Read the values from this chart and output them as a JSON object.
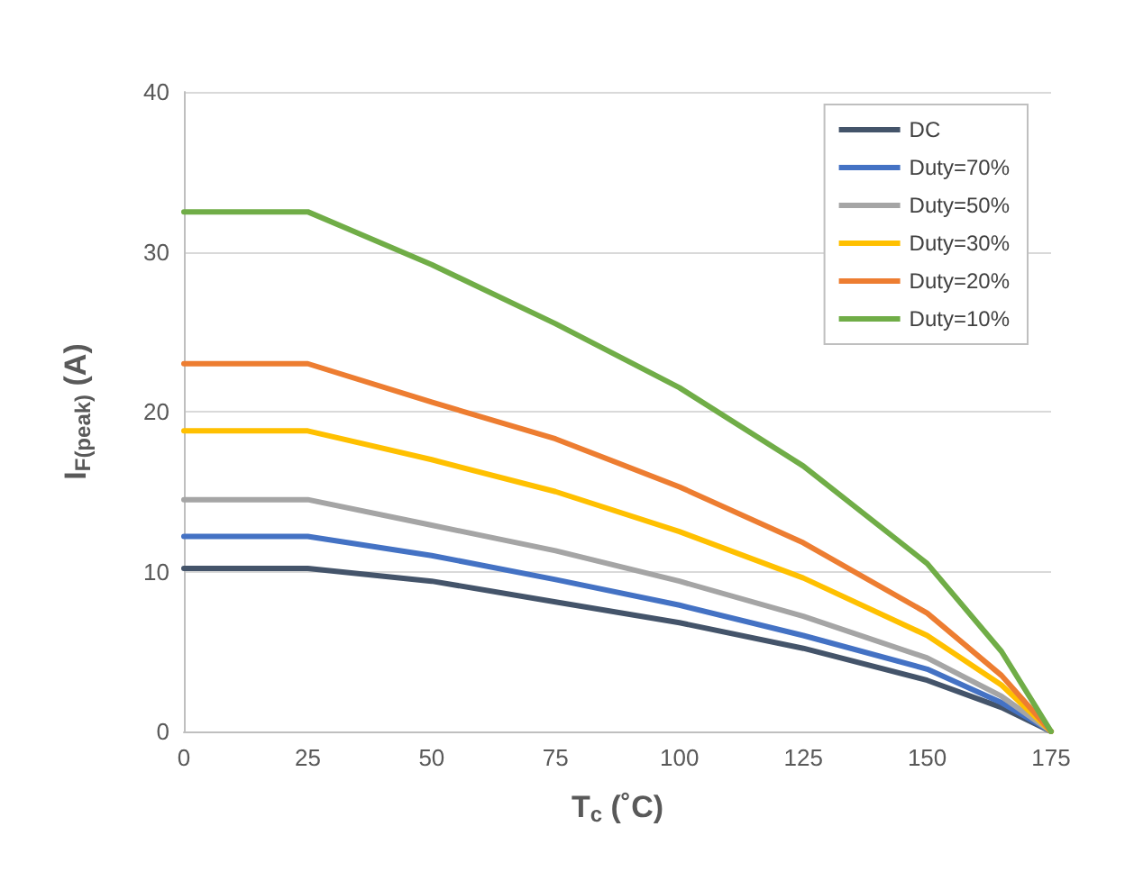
{
  "chart_data": {
    "type": "line",
    "xlabel": "T$_{c}$ (˚C)",
    "ylabel": "I$_{F(peak)}$ (A)",
    "x": [
      0,
      25,
      50,
      75,
      100,
      125,
      150,
      165,
      175
    ],
    "xlim": [
      0,
      175
    ],
    "xticks": [
      0,
      25,
      50,
      75,
      100,
      125,
      150,
      175
    ],
    "ylim": [
      0,
      40
    ],
    "yticks": [
      0,
      10,
      20,
      30,
      40
    ],
    "grid": "y",
    "legend": "top right",
    "marker": "none",
    "line_style": "solid",
    "series": [
      {
        "name": "DC",
        "color": "#44546a",
        "values": [
          10.2,
          10.2,
          9.4,
          8.1,
          6.8,
          5.2,
          3.2,
          1.5,
          0
        ]
      },
      {
        "name": "Duty=70%",
        "color": "#4472c4",
        "values": [
          12.2,
          12.2,
          11.0,
          9.5,
          7.9,
          6.0,
          3.9,
          1.8,
          0
        ]
      },
      {
        "name": "Duty=50%",
        "color": "#a5a5a5",
        "values": [
          14.5,
          14.5,
          12.9,
          11.3,
          9.4,
          7.2,
          4.6,
          2.2,
          0
        ]
      },
      {
        "name": "Duty=30%",
        "color": "#ffc000",
        "values": [
          18.8,
          18.8,
          17.0,
          15.0,
          12.5,
          9.6,
          6.0,
          2.9,
          0
        ]
      },
      {
        "name": "Duty=20%",
        "color": "#ed7d31",
        "values": [
          23.0,
          23.0,
          20.6,
          18.3,
          15.3,
          11.8,
          7.4,
          3.5,
          0
        ]
      },
      {
        "name": "Duty=10%",
        "color": "#70ad47",
        "values": [
          32.5,
          32.5,
          29.2,
          25.5,
          21.5,
          16.6,
          10.5,
          5.0,
          0
        ]
      }
    ]
  }
}
